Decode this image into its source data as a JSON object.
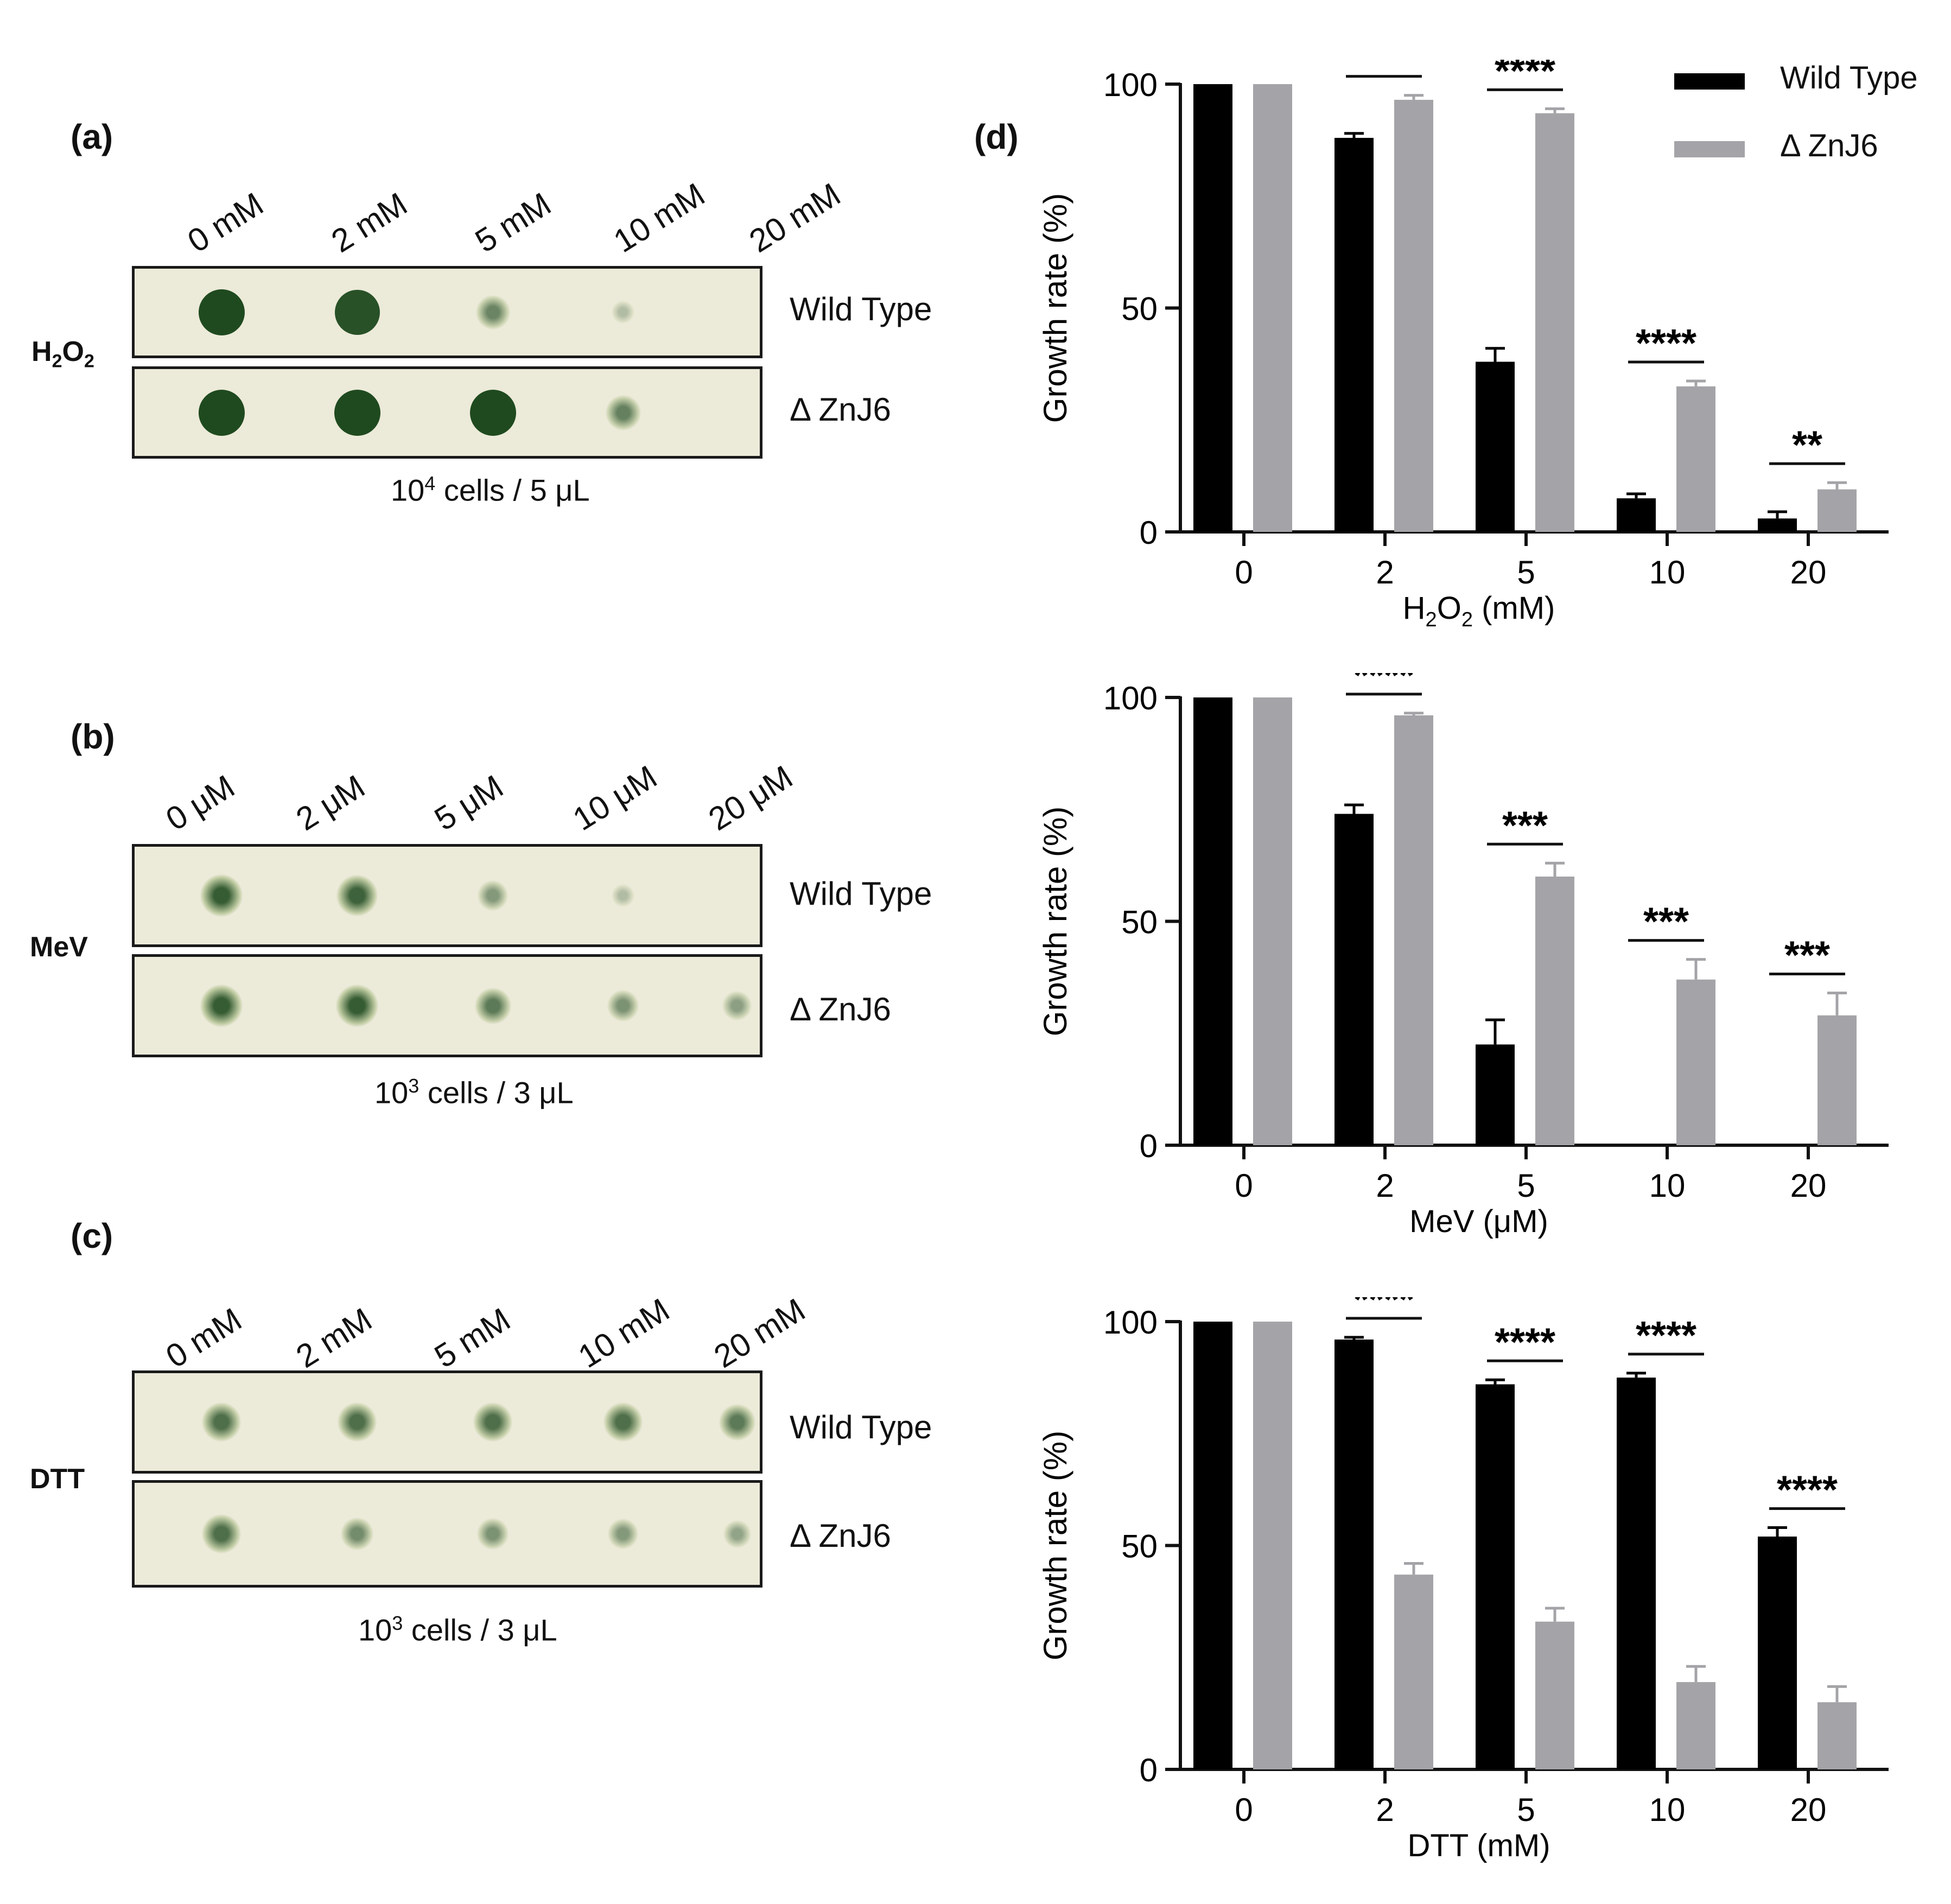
{
  "panels": {
    "a": {
      "label": "(a)",
      "reagent": "H2O2",
      "concentrations": [
        "0 mM",
        "2 mM",
        "5 mM",
        "10 mM",
        "20 mM"
      ],
      "strains": [
        "Wild Type",
        "Δ ZnJ6"
      ],
      "caption_base": "10",
      "caption_exp": "4",
      "caption_rest": " cells / 5 μL",
      "spot_growth": [
        [
          1.0,
          0.95,
          0.5,
          0.05,
          0.0
        ],
        [
          1.0,
          1.0,
          1.0,
          0.55,
          0.0
        ]
      ]
    },
    "b": {
      "label": "(b)",
      "reagent": "MeV",
      "concentrations": [
        "0 μM",
        "2 μM",
        "5 μM",
        "10 μM",
        "20 μM"
      ],
      "strains": [
        "Wild Type",
        "Δ ZnJ6"
      ],
      "caption_base": "10",
      "caption_exp": "3",
      "caption_rest": " cells / 3 μL",
      "spot_growth": [
        [
          0.85,
          0.8,
          0.35,
          0.05,
          0.0
        ],
        [
          0.85,
          0.85,
          0.6,
          0.4,
          0.3
        ]
      ]
    },
    "c": {
      "label": "(c)",
      "reagent": "DTT",
      "concentrations": [
        "0 mM",
        "2 mM",
        "5 mM",
        "10 mM",
        "20 mM"
      ],
      "strains": [
        "Wild Type",
        "Δ ZnJ6"
      ],
      "caption_base": "10",
      "caption_exp": "3",
      "caption_rest": " cells / 3 μL",
      "spot_growth": [
        [
          0.7,
          0.7,
          0.7,
          0.7,
          0.6
        ],
        [
          0.7,
          0.45,
          0.4,
          0.35,
          0.25
        ]
      ]
    },
    "d": {
      "label": "(d)"
    }
  },
  "colors": {
    "wild_type": "#000000",
    "znj6": "#a4a4a8",
    "plate": "#ecead9",
    "colony": "#1f4a1f"
  },
  "legend": {
    "items": [
      "Wild Type",
      "Δ ZnJ6"
    ],
    "placement": "top-right"
  },
  "chart_data": [
    {
      "type": "bar",
      "categories": [
        "0",
        "2",
        "5",
        "10",
        "20"
      ],
      "xlabel": "H2O2 (mM)",
      "ylabel": "Growth rate (%)",
      "ylim": [
        0,
        100
      ],
      "yticks": [
        "0",
        "50",
        "100"
      ],
      "series": [
        {
          "name": "Wild Type",
          "values": [
            100,
            88,
            38,
            7.5,
            3
          ],
          "errors": [
            0,
            1,
            3,
            1,
            1.5
          ]
        },
        {
          "name": "Δ ZnJ6",
          "values": [
            100,
            96.5,
            93.5,
            32.5,
            9.5
          ],
          "errors": [
            0,
            1,
            1,
            1.2,
            1.5
          ]
        }
      ],
      "significance": [
        "",
        "***",
        "****",
        "****",
        "**"
      ]
    },
    {
      "type": "bar",
      "categories": [
        "0",
        "2",
        "5",
        "10",
        "20"
      ],
      "xlabel": "MeV (μM)",
      "ylabel": "Growth rate (%)",
      "ylim": [
        0,
        100
      ],
      "yticks": [
        "0",
        "50",
        "100"
      ],
      "series": [
        {
          "name": "Wild Type",
          "values": [
            100,
            74,
            22.5,
            0,
            0
          ],
          "errors": [
            0,
            2,
            5.5,
            0,
            0
          ]
        },
        {
          "name": "Δ ZnJ6",
          "values": [
            100,
            96,
            60,
            37,
            29
          ],
          "errors": [
            0,
            0.5,
            3,
            4.5,
            5
          ]
        }
      ],
      "significance": [
        "",
        "****",
        "***",
        "***",
        "***"
      ]
    },
    {
      "type": "bar",
      "categories": [
        "0",
        "2",
        "5",
        "10",
        "20"
      ],
      "xlabel": "DTT (mM)",
      "ylabel": "Growth rate (%)",
      "ylim": [
        0,
        100
      ],
      "yticks": [
        "0",
        "50",
        "100"
      ],
      "series": [
        {
          "name": "Wild Type",
          "values": [
            100,
            96,
            86,
            87.5,
            52
          ],
          "errors": [
            0,
            0.5,
            1,
            1,
            2
          ]
        },
        {
          "name": "Δ ZnJ6",
          "values": [
            100,
            43.5,
            33,
            19.5,
            15
          ],
          "errors": [
            0,
            2.5,
            3,
            3.5,
            3.5
          ]
        }
      ],
      "significance": [
        "",
        "****",
        "****",
        "****",
        "****"
      ]
    }
  ]
}
